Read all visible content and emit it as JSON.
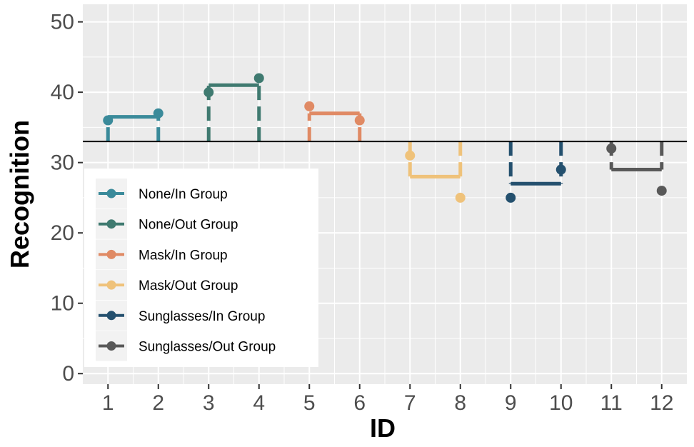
{
  "chart_data": {
    "type": "scatter",
    "title": "",
    "xlabel": "ID",
    "ylabel": "Recognition",
    "xlim": [
      0.5,
      12.5
    ],
    "ylim": [
      -1.5,
      52.5
    ],
    "x_ticks": [
      "1",
      "2",
      "3",
      "4",
      "5",
      "6",
      "7",
      "8",
      "9",
      "10",
      "11",
      "12"
    ],
    "y_ticks": [
      "0",
      "10",
      "20",
      "30",
      "40",
      "50"
    ],
    "reference_line": 33,
    "grid": true,
    "legend_position": "bottom-left inside",
    "series": [
      {
        "name": "None/In Group",
        "color": "#3a8a9a",
        "x": [
          1,
          2
        ],
        "values": [
          36,
          37
        ],
        "mean": 36.5
      },
      {
        "name": "None/Out Group",
        "color": "#3f7a70",
        "x": [
          3,
          4
        ],
        "values": [
          40,
          42
        ],
        "mean": 41
      },
      {
        "name": "Mask/In Group",
        "color": "#e08a64",
        "x": [
          5,
          6
        ],
        "values": [
          38,
          36
        ],
        "mean": 37
      },
      {
        "name": "Mask/Out Group",
        "color": "#efc27a",
        "x": [
          7,
          8
        ],
        "values": [
          31,
          25
        ],
        "mean": 28
      },
      {
        "name": "Sunglasses/In Group",
        "color": "#24506e",
        "x": [
          9,
          10
        ],
        "values": [
          25,
          29
        ],
        "mean": 27
      },
      {
        "name": "Sunglasses/Out Group",
        "color": "#595959",
        "x": [
          11,
          12
        ],
        "values": [
          32,
          26
        ],
        "mean": 29
      }
    ]
  }
}
